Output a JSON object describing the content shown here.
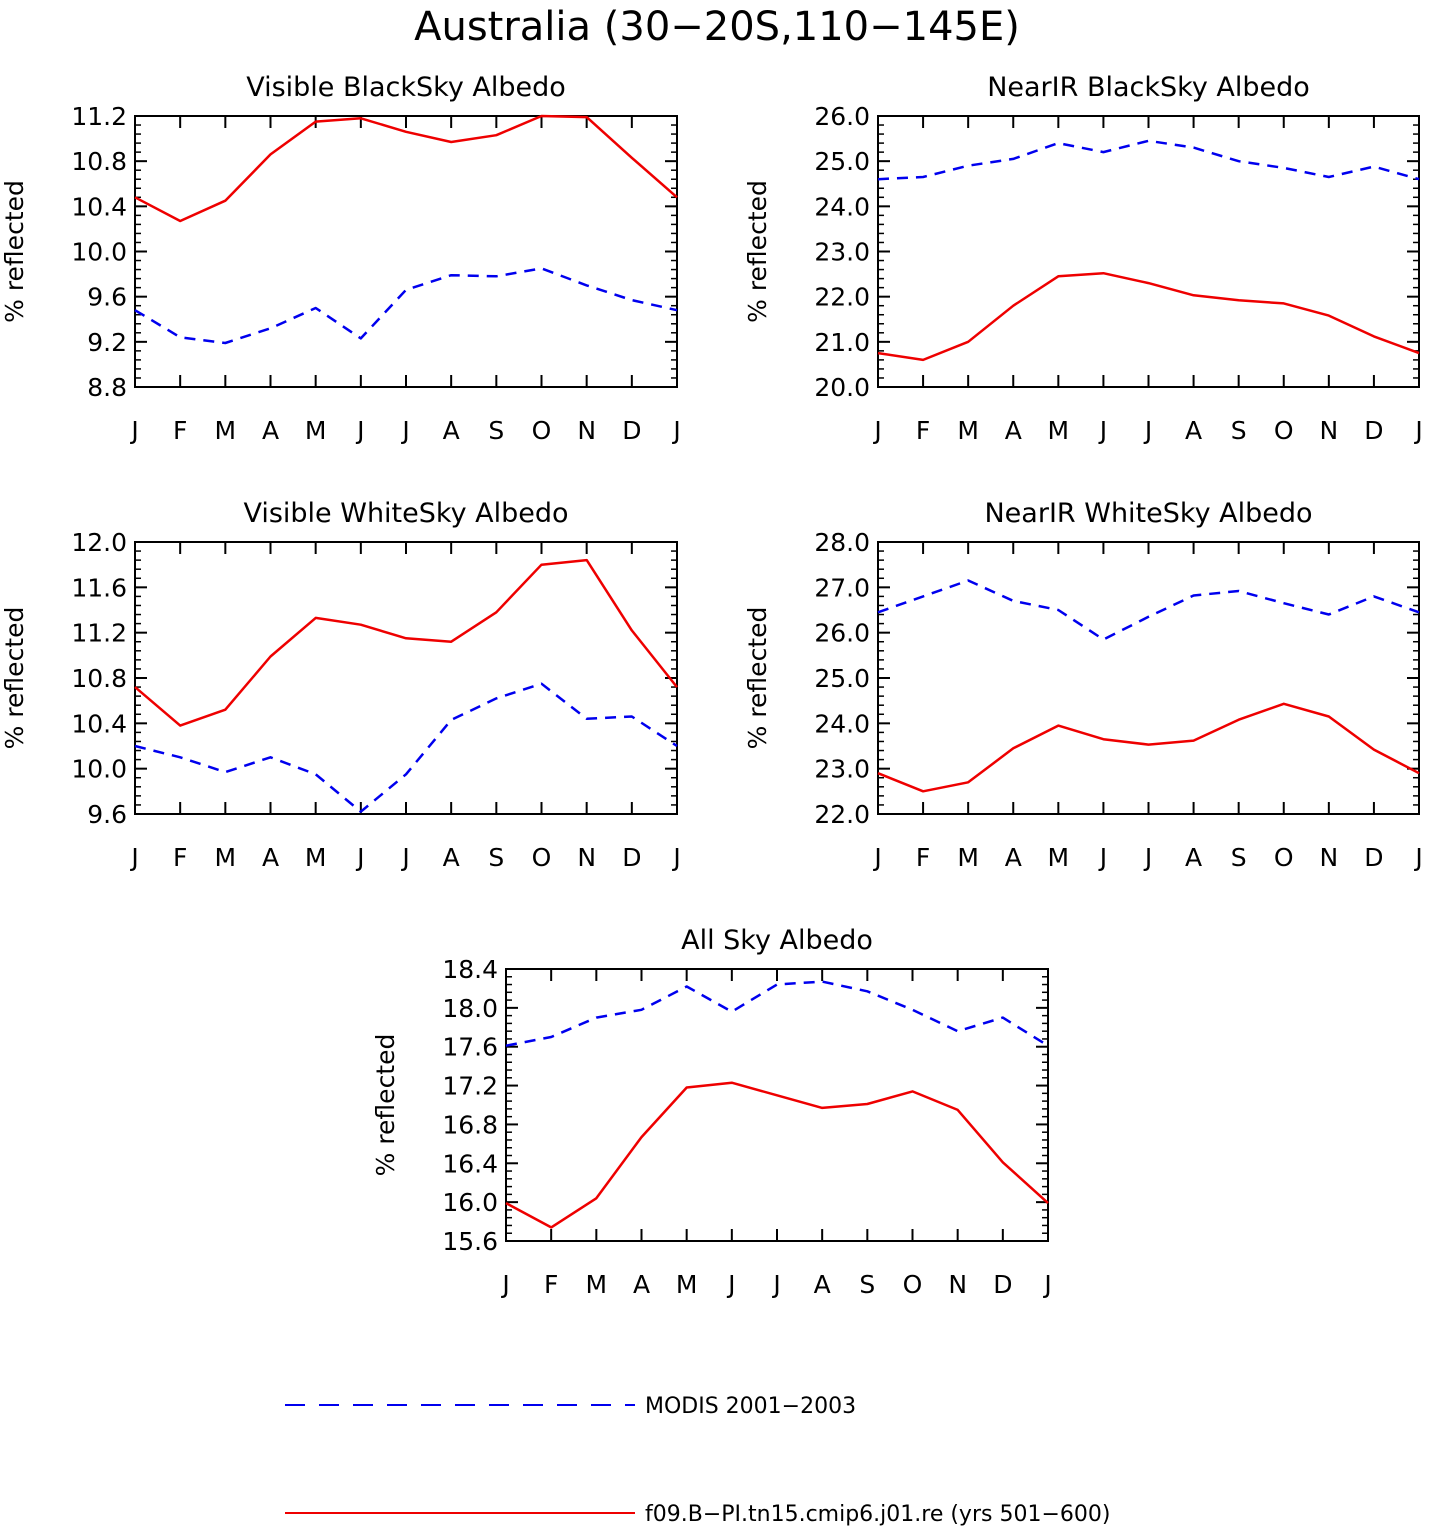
{
  "title": "Australia (30−20S,110−145E)",
  "colors": {
    "modis": "#0000ee",
    "model": "#ee0000",
    "axis": "#000000"
  },
  "legend": {
    "placement": "bottom",
    "entries": [
      {
        "key": "modis",
        "label": "MODIS 2001−2003",
        "style": "dashed"
      },
      {
        "key": "model",
        "label": "f09.B−PI.tn15.cmip6.j01.re (yrs 501−600)",
        "style": "solid"
      }
    ]
  },
  "chart_data": [
    {
      "type": "line",
      "title": "Visible BlackSky Albedo",
      "ylabel": "% reflected",
      "xlabel": "",
      "categories": [
        "J",
        "F",
        "M",
        "A",
        "M",
        "J",
        "J",
        "A",
        "S",
        "O",
        "N",
        "D",
        "J"
      ],
      "ylim": [
        8.8,
        11.2
      ],
      "yticks": [
        "8.8",
        "9.2",
        "9.6",
        "10.0",
        "10.4",
        "10.8",
        "11.2"
      ],
      "grid": false,
      "series": [
        {
          "key": "modis",
          "values": [
            9.48,
            9.24,
            9.19,
            9.32,
            9.5,
            9.23,
            9.66,
            9.79,
            9.78,
            9.85,
            9.7,
            9.57,
            9.48
          ]
        },
        {
          "key": "model",
          "values": [
            10.48,
            10.27,
            10.45,
            10.86,
            11.15,
            11.18,
            11.06,
            10.97,
            11.03,
            11.2,
            11.19,
            10.83,
            10.48
          ]
        }
      ]
    },
    {
      "type": "line",
      "title": "NearIR BlackSky Albedo",
      "ylabel": "% reflected",
      "xlabel": "",
      "categories": [
        "J",
        "F",
        "M",
        "A",
        "M",
        "J",
        "J",
        "A",
        "S",
        "O",
        "N",
        "D",
        "J"
      ],
      "ylim": [
        20.0,
        26.0
      ],
      "yticks": [
        "20.0",
        "21.0",
        "22.0",
        "23.0",
        "24.0",
        "25.0",
        "26.0"
      ],
      "grid": false,
      "series": [
        {
          "key": "modis",
          "values": [
            24.6,
            24.65,
            24.9,
            25.05,
            25.4,
            25.2,
            25.45,
            25.3,
            25.0,
            24.85,
            24.65,
            24.88,
            24.6
          ]
        },
        {
          "key": "model",
          "values": [
            20.75,
            20.6,
            21.0,
            21.8,
            22.45,
            22.52,
            22.3,
            22.03,
            21.92,
            21.85,
            21.58,
            21.12,
            20.75
          ]
        }
      ]
    },
    {
      "type": "line",
      "title": "Visible WhiteSky Albedo",
      "ylabel": "% reflected",
      "xlabel": "",
      "categories": [
        "J",
        "F",
        "M",
        "A",
        "M",
        "J",
        "J",
        "A",
        "S",
        "O",
        "N",
        "D",
        "J"
      ],
      "ylim": [
        9.6,
        12.0
      ],
      "yticks": [
        "9.6",
        "10.0",
        "10.4",
        "10.8",
        "11.2",
        "11.6",
        "12.0"
      ],
      "grid": false,
      "series": [
        {
          "key": "modis",
          "values": [
            10.2,
            10.1,
            9.97,
            10.1,
            9.95,
            9.62,
            9.95,
            10.43,
            10.62,
            10.75,
            10.44,
            10.46,
            10.2
          ]
        },
        {
          "key": "model",
          "values": [
            10.72,
            10.38,
            10.52,
            10.99,
            11.33,
            11.27,
            11.15,
            11.12,
            11.38,
            11.8,
            11.84,
            11.22,
            10.72
          ]
        }
      ]
    },
    {
      "type": "line",
      "title": "NearIR WhiteSky Albedo",
      "ylabel": "% reflected",
      "xlabel": "",
      "categories": [
        "J",
        "F",
        "M",
        "A",
        "M",
        "J",
        "J",
        "A",
        "S",
        "O",
        "N",
        "D",
        "J"
      ],
      "ylim": [
        22.0,
        28.0
      ],
      "yticks": [
        "22.0",
        "23.0",
        "24.0",
        "25.0",
        "26.0",
        "27.0",
        "28.0"
      ],
      "grid": false,
      "series": [
        {
          "key": "modis",
          "values": [
            26.45,
            26.8,
            27.15,
            26.7,
            26.5,
            25.85,
            26.35,
            26.82,
            26.92,
            26.65,
            26.4,
            26.8,
            26.45
          ]
        },
        {
          "key": "model",
          "values": [
            22.9,
            22.5,
            22.7,
            23.45,
            23.95,
            23.65,
            23.53,
            23.62,
            24.08,
            24.43,
            24.15,
            23.42,
            22.9
          ]
        }
      ]
    },
    {
      "type": "line",
      "title": "All Sky Albedo",
      "ylabel": "% reflected",
      "xlabel": "",
      "categories": [
        "J",
        "F",
        "M",
        "A",
        "M",
        "J",
        "J",
        "A",
        "S",
        "O",
        "N",
        "D",
        "J"
      ],
      "ylim": [
        15.6,
        18.4
      ],
      "yticks": [
        "15.6",
        "16.0",
        "16.4",
        "16.8",
        "17.2",
        "17.6",
        "18.0",
        "18.4"
      ],
      "grid": false,
      "series": [
        {
          "key": "modis",
          "values": [
            17.61,
            17.7,
            17.9,
            17.98,
            18.22,
            17.96,
            18.24,
            18.27,
            18.17,
            17.98,
            17.76,
            17.9,
            17.61
          ]
        },
        {
          "key": "model",
          "values": [
            15.99,
            15.74,
            16.04,
            16.67,
            17.18,
            17.23,
            17.1,
            16.97,
            17.01,
            17.14,
            16.95,
            16.41,
            15.99
          ]
        }
      ]
    }
  ]
}
